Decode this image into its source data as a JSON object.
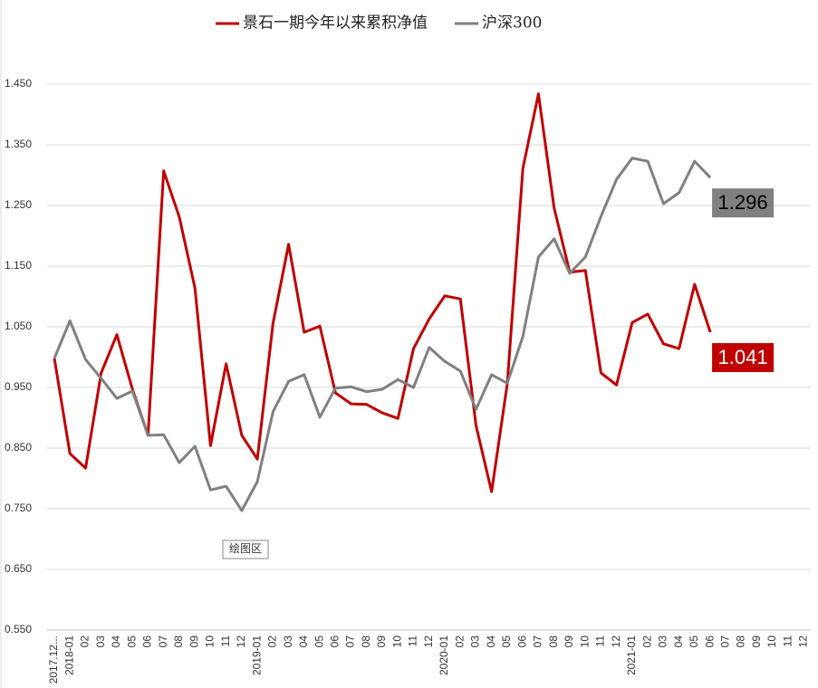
{
  "chart_data": {
    "type": "line",
    "legend": "top",
    "grid": true,
    "tooltip": "绘图区",
    "categories": [
      "2017.12...",
      "2018-01",
      "02",
      "03",
      "04",
      "05",
      "06",
      "07",
      "08",
      "09",
      "10",
      "11",
      "12",
      "2019-01",
      "02",
      "03",
      "04",
      "05",
      "06",
      "07",
      "08",
      "09",
      "10",
      "11",
      "12",
      "2020-01",
      "02",
      "03",
      "04",
      "05",
      "06",
      "07",
      "08",
      "09",
      "10",
      "11",
      "12",
      "2021-01",
      "02",
      "03",
      "04",
      "05",
      "06",
      "07",
      "08",
      "09",
      "10",
      "11",
      "12"
    ],
    "ylim": [
      0.55,
      1.45
    ],
    "yticks": [
      {
        "value": 0.55,
        "label": "0.550"
      },
      {
        "value": 0.65,
        "label": "0.650"
      },
      {
        "value": 0.75,
        "label": "0.750"
      },
      {
        "value": 0.85,
        "label": "0.850"
      },
      {
        "value": 0.95,
        "label": "0.950"
      },
      {
        "value": 1.05,
        "label": "1.050"
      },
      {
        "value": 1.15,
        "label": "1.150"
      },
      {
        "value": 1.25,
        "label": "1.250"
      },
      {
        "value": 1.35,
        "label": "1.350"
      },
      {
        "value": 1.45,
        "label": "1.450"
      }
    ],
    "series": [
      {
        "name": "景石一期今年以来累积净值",
        "color": "#c00000",
        "show_last_value": true,
        "values": [
          0.998,
          0.841,
          0.817,
          0.974,
          1.037,
          0.947,
          0.871,
          1.307,
          1.231,
          1.114,
          0.854,
          0.989,
          0.871,
          0.832,
          1.056,
          1.186,
          1.041,
          1.051,
          0.941,
          0.923,
          0.922,
          0.908,
          0.899,
          1.014,
          1.063,
          1.101,
          1.096,
          0.887,
          0.778,
          0.956,
          1.311,
          1.434,
          1.246,
          1.14,
          1.143,
          0.974,
          0.954,
          1.057,
          1.071,
          1.022,
          1.014,
          1.12,
          1.041,
          null,
          null,
          null,
          null,
          null,
          null
        ]
      },
      {
        "name": "沪深300",
        "color": "#808080",
        "show_last_value": true,
        "values": [
          0.998,
          1.06,
          0.996,
          0.965,
          0.932,
          0.944,
          0.871,
          0.872,
          0.826,
          0.853,
          0.781,
          0.787,
          0.747,
          0.795,
          0.91,
          0.96,
          0.971,
          0.901,
          0.949,
          0.951,
          0.943,
          0.947,
          0.963,
          0.95,
          1.016,
          0.993,
          0.977,
          0.914,
          0.971,
          0.957,
          1.034,
          1.165,
          1.195,
          1.138,
          1.165,
          1.232,
          1.293,
          1.328,
          1.323,
          1.253,
          1.271,
          1.323,
          1.296,
          null,
          null,
          null,
          null,
          null,
          null
        ]
      }
    ]
  }
}
